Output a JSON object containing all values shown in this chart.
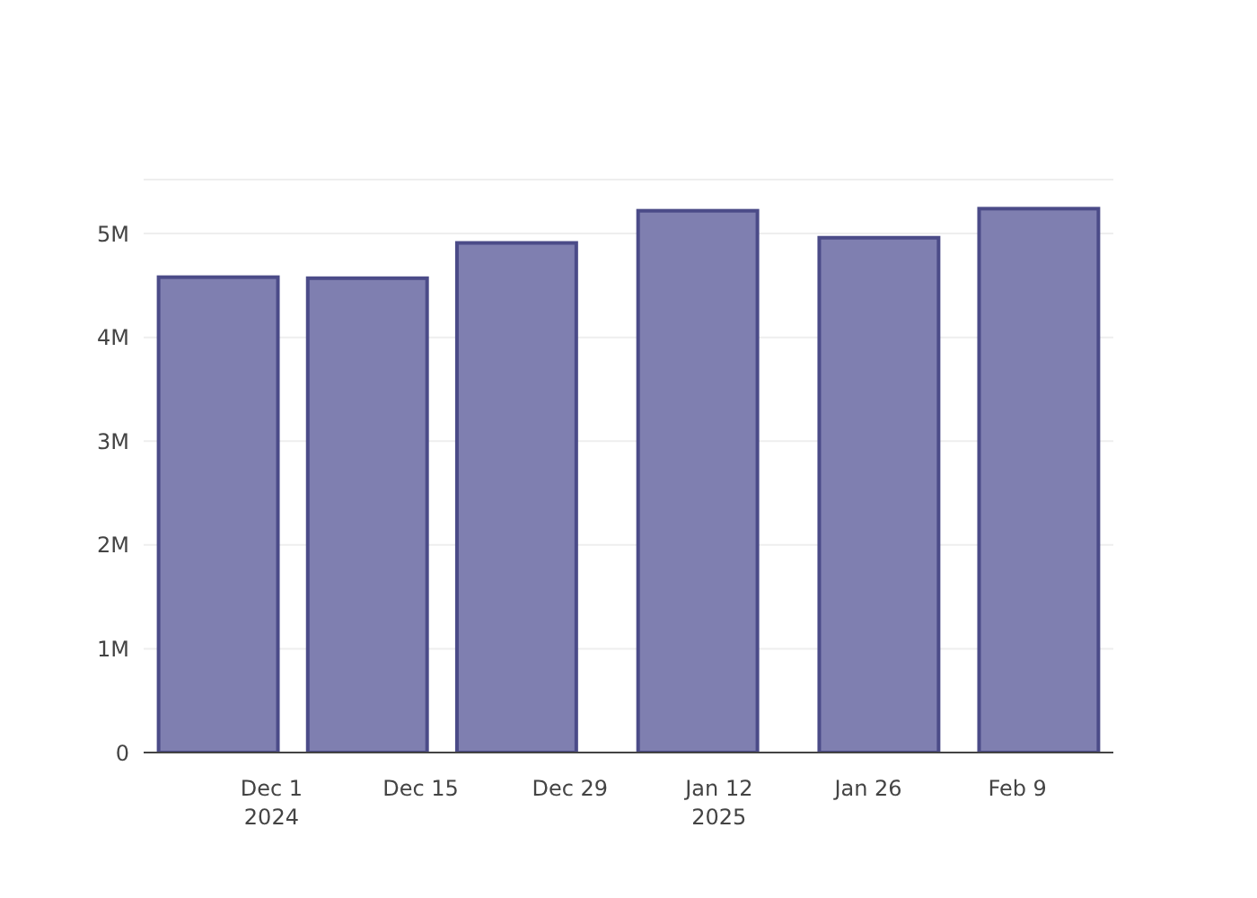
{
  "chart_data": {
    "type": "bar",
    "x": [
      "2024-11-26",
      "2024-12-10",
      "2024-12-24",
      "2025-01-10",
      "2025-01-27",
      "2025-02-11"
    ],
    "values": [
      4580000,
      4570000,
      4910000,
      5220000,
      4960000,
      5240000
    ],
    "color": "#7f7fb0",
    "xlim": [
      "2024-11-19",
      "2025-02-18"
    ],
    "xticks": [
      {
        "value": "2024-12-01",
        "label": "Dec 1\n2024"
      },
      {
        "value": "2024-12-15",
        "label": "Dec 15"
      },
      {
        "value": "2024-12-29",
        "label": "Dec 29"
      },
      {
        "value": "2025-01-12",
        "label": "Jan 12\n2025"
      },
      {
        "value": "2025-01-26",
        "label": "Jan 26"
      },
      {
        "value": "2025-02-09",
        "label": "Feb 9"
      }
    ],
    "ylim": [
      0,
      5520000
    ],
    "yticks": [
      0,
      {
        "value": 1000000,
        "label": "1M"
      },
      {
        "value": 2000000,
        "label": "2M"
      },
      {
        "value": 3000000,
        "label": "3M"
      },
      {
        "value": 4000000,
        "label": "4M"
      },
      {
        "value": 5000000,
        "label": "5M"
      }
    ],
    "grid": "y"
  }
}
